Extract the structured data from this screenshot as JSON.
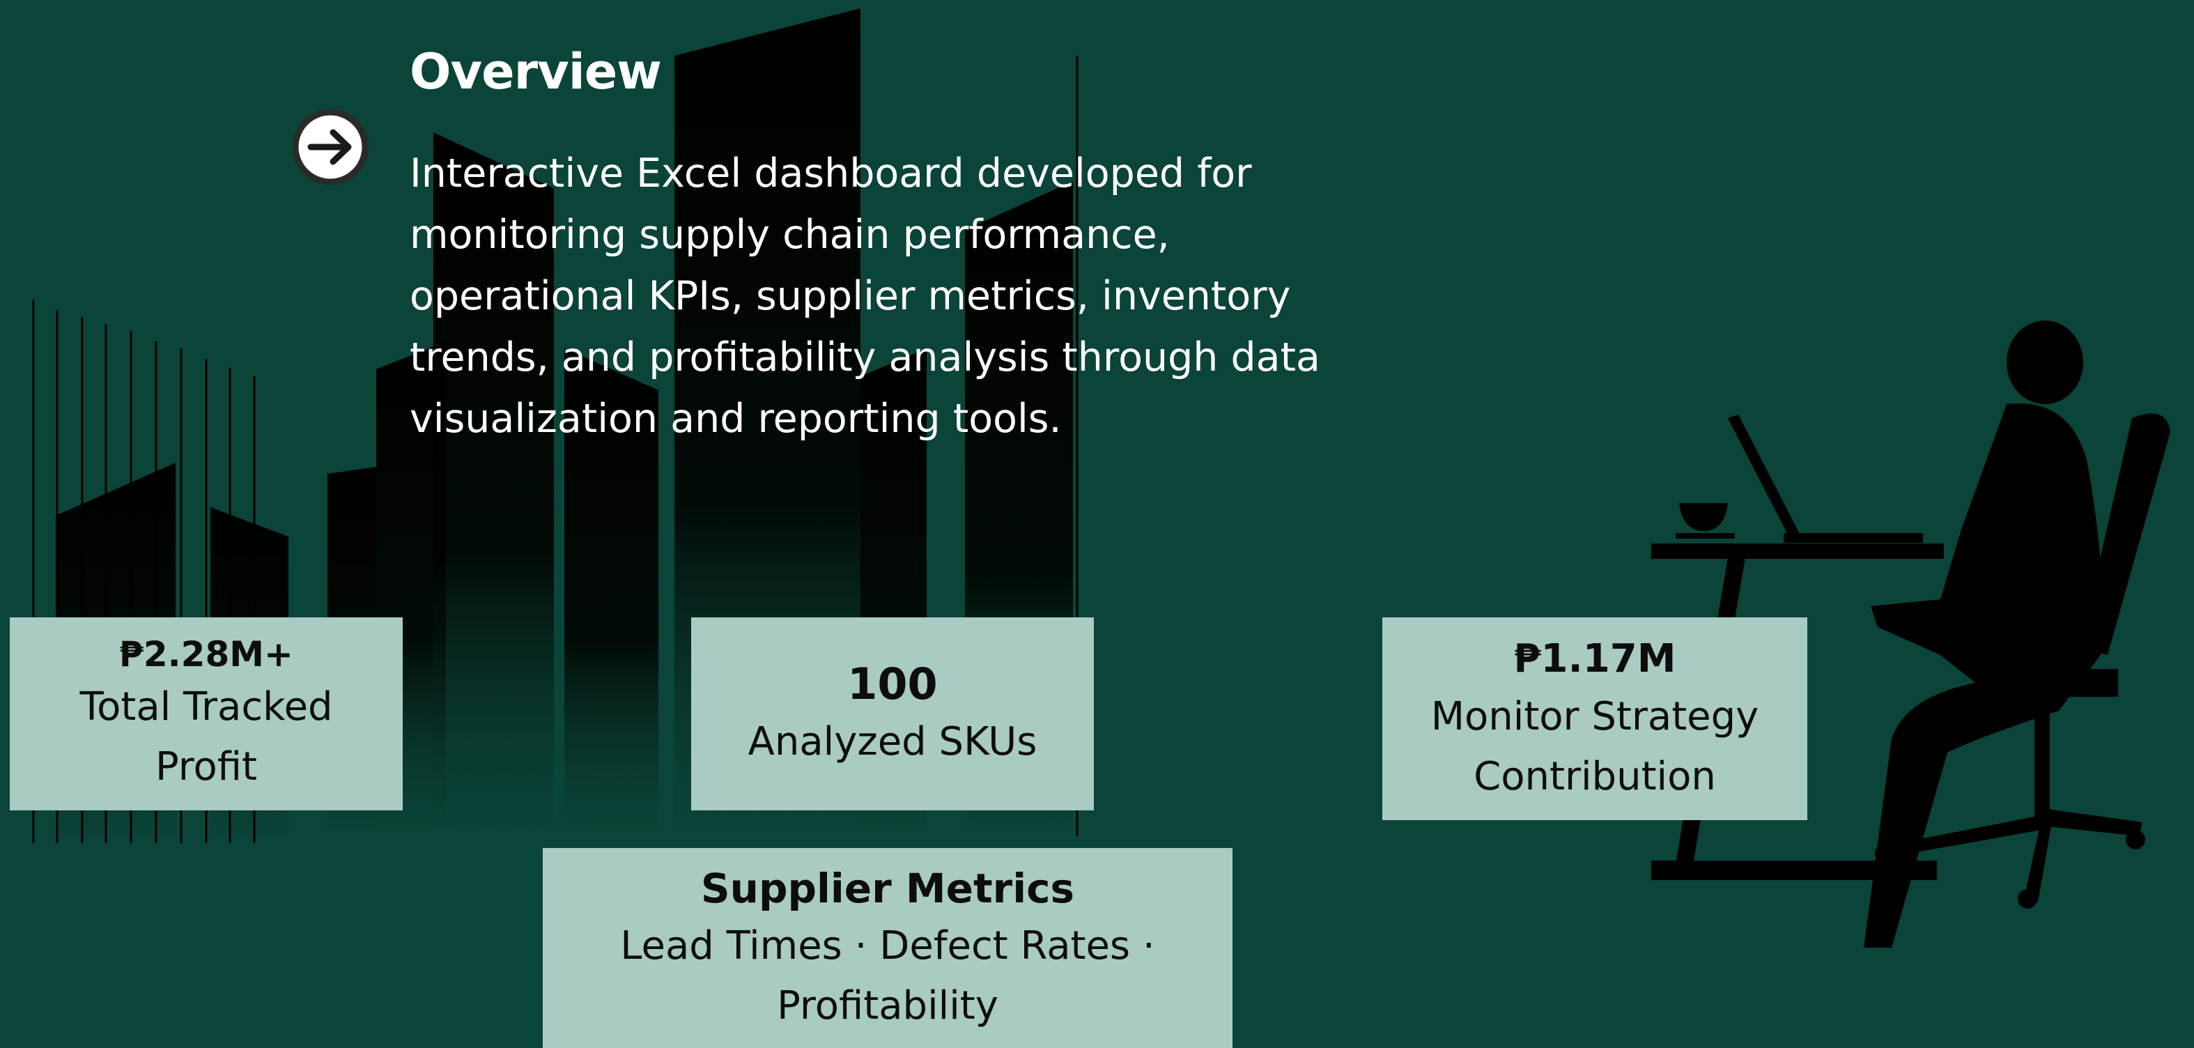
{
  "overview": {
    "title": "Overview",
    "description": "Interactive Excel dashboard developed for monitoring supply chain performance, operational KPIs, supplier metrics, inventory trends, and profitability analysis through data visualization and reporting tools."
  },
  "cards": [
    {
      "value": "₱2.28M+",
      "label": "Total Tracked Profit"
    },
    {
      "value": "100",
      "label": "Analyzed SKUs"
    },
    {
      "value": "₱1.17M",
      "label": "Monitor Strategy Contribution"
    }
  ],
  "supplier": {
    "title": "Supplier Metrics",
    "text": "Lead Times · Defect Rates · Profitability"
  }
}
